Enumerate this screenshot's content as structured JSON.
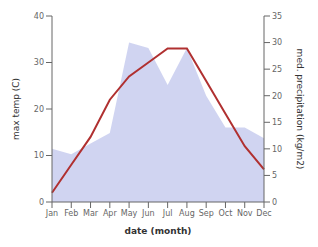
{
  "chart_data": {
    "type": "line",
    "categories": [
      "Jan",
      "Feb",
      "Mar",
      "Apr",
      "May",
      "Jun",
      "Jul",
      "Aug",
      "Sep",
      "Oct",
      "Nov",
      "Dec"
    ],
    "xlabel": "date (month)",
    "ylabel": "max temp (C)",
    "y2label": "med. precipitation (kg/m2)",
    "series": [
      {
        "type": "area",
        "color": "#b0b8e8",
        "axis": "y2",
        "values": [
          10,
          9,
          11,
          13,
          30,
          29,
          22,
          29,
          20,
          14,
          14,
          12
        ]
      },
      {
        "type": "line",
        "color": "#b03030",
        "values": [
          2,
          8,
          14,
          22,
          27,
          30,
          33,
          33,
          26,
          19,
          12,
          7
        ]
      }
    ],
    "ylim": [
      0,
      40
    ],
    "yticks": [
      0,
      10,
      20,
      30,
      40
    ],
    "y2lim": [
      0,
      35
    ],
    "y2ticks": [
      0,
      5,
      10,
      15,
      20,
      25,
      30,
      35
    ]
  }
}
